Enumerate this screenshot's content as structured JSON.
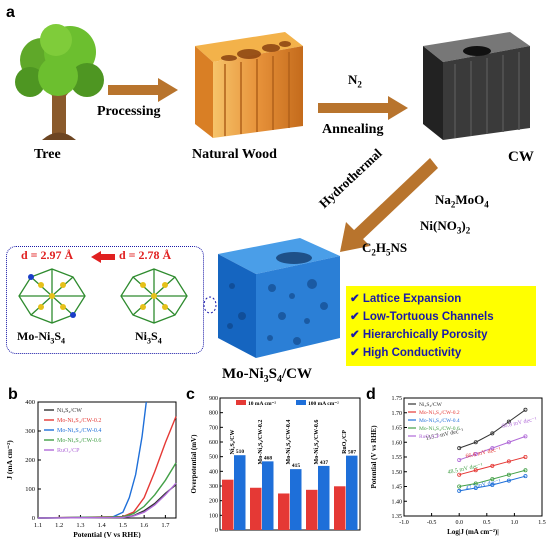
{
  "panel_labels": {
    "a": "a",
    "b": "b",
    "c": "c",
    "d": "d"
  },
  "scheme": {
    "tree": "Tree",
    "processing": "Processing",
    "natural_wood": "Natural Wood",
    "n2": "N2",
    "annealing": "Annealing",
    "cw": "CW",
    "hydrothermal": "Hydrothermal",
    "reagents": [
      "Na2MoO4",
      "Ni(NO3)2",
      "C2H5NS"
    ],
    "d1": "d = 2.97 Å",
    "d2": "d = 2.78 Å",
    "struct1": "Mo-Ni3S4",
    "struct2": "Ni3S4",
    "product": "Mo-Ni3S4/CW",
    "features": [
      "Lattice Expansion",
      "Low-Tortuous Channels",
      "Hierarchically Porosity",
      "High Conductivity"
    ]
  },
  "colors": {
    "ni3s4": "#333333",
    "mo02": "#e53935",
    "mo04": "#1e6fd9",
    "mo06": "#43a047",
    "ruo2": "#b06ad8",
    "yellow": "#ffff00",
    "navy": "#1a1aa8"
  },
  "chart_data": [
    {
      "type": "line",
      "panel": "b",
      "xlabel": "Potential (V vs RHE)",
      "ylabel": "J (mA cm⁻²)",
      "xlim": [
        1.1,
        1.75
      ],
      "ylim": [
        0,
        400
      ],
      "xticks": [
        "1.1",
        "1.2",
        "1.3",
        "1.4",
        "1.5",
        "1.6",
        "1.7"
      ],
      "yticks": [
        "0",
        "100",
        "200",
        "300",
        "400"
      ],
      "legend": [
        "Ni3S4/CW",
        "Mo-Ni3S4/CW-0.2",
        "Mo-Ni3S4/CW-0.4",
        "Mo-Ni3S4/CW-0.6",
        "RuO2/CP"
      ],
      "series": [
        {
          "name": "Ni3S4/CW",
          "x": [
            1.1,
            1.5,
            1.55,
            1.6,
            1.65,
            1.7,
            1.75
          ],
          "values": [
            0,
            2,
            8,
            25,
            50,
            85,
            115
          ]
        },
        {
          "name": "Mo-Ni3S4/CW-0.2",
          "x": [
            1.1,
            1.5,
            1.55,
            1.6,
            1.65,
            1.7,
            1.75
          ],
          "values": [
            0,
            5,
            20,
            70,
            160,
            260,
            350
          ]
        },
        {
          "name": "Mo-Ni3S4/CW-0.4",
          "x": [
            1.1,
            1.45,
            1.5,
            1.53,
            1.56,
            1.59,
            1.61
          ],
          "values": [
            0,
            3,
            20,
            70,
            150,
            280,
            400
          ]
        },
        {
          "name": "Mo-Ni3S4/CW-0.6",
          "x": [
            1.1,
            1.5,
            1.55,
            1.6,
            1.65,
            1.7,
            1.75
          ],
          "values": [
            0,
            4,
            15,
            40,
            80,
            130,
            190
          ]
        },
        {
          "name": "RuO2/CP",
          "x": [
            1.1,
            1.5,
            1.55,
            1.6,
            1.65,
            1.7,
            1.75
          ],
          "values": [
            0,
            2,
            7,
            20,
            45,
            80,
            120
          ]
        }
      ]
    },
    {
      "type": "bar",
      "panel": "c",
      "ylabel": "Overpotential (mV)",
      "ylim": [
        0,
        900
      ],
      "yticks": [
        "0",
        "100",
        "200",
        "300",
        "400",
        "500",
        "600",
        "700",
        "800",
        "900"
      ],
      "categories": [
        "Ni3S4/CW",
        "Mo-Ni3S4/CW-0.2",
        "Mo-Ni3S4/CW-0.4",
        "Mo-Ni3S4/CW-0.6",
        "RuO2/CP"
      ],
      "series": [
        {
          "name": "10 mA cm⁻²",
          "values": [
            343,
            288,
            249,
            274,
            298
          ]
        },
        {
          "name": "100 mA cm⁻²",
          "values": [
            510,
            468,
            415,
            437,
            507
          ]
        }
      ]
    },
    {
      "type": "line",
      "panel": "d",
      "xlabel": "Log|J (mA cm⁻²)|",
      "ylabel": "Potential (V vs RHE)",
      "xlim": [
        -1.0,
        1.5
      ],
      "ylim": [
        1.35,
        1.75
      ],
      "xticks": [
        "-1.0",
        "-0.5",
        "0.0",
        "0.5",
        "1.0",
        "1.5"
      ],
      "yticks": [
        "1.35",
        "1.40",
        "1.45",
        "1.50",
        "1.55",
        "1.60",
        "1.65",
        "1.70",
        "1.75"
      ],
      "legend": [
        "Ni3S4/CW",
        "Mo-Ni3S4/CW-0.2",
        "Mo-Ni3S4/CW-0.4",
        "Mo-Ni3S4/CW-0.6",
        "RuO2/CP"
      ],
      "annotations": [
        "115.7 mV dec⁻¹",
        "60.8 mV dec⁻¹",
        "66.6 mV dec⁻¹",
        "48.5 mV dec⁻¹",
        "47.7 mV dec⁻¹"
      ],
      "series": [
        {
          "name": "Ni3S4/CW",
          "x": [
            0.0,
            0.3,
            0.6,
            0.9,
            1.2
          ],
          "values": [
            1.58,
            1.6,
            1.63,
            1.67,
            1.71
          ]
        },
        {
          "name": "RuO2/CP",
          "x": [
            0.0,
            0.3,
            0.6,
            0.9,
            1.2
          ],
          "values": [
            1.54,
            1.56,
            1.58,
            1.6,
            1.62
          ]
        },
        {
          "name": "Mo-Ni3S4/CW-0.2",
          "x": [
            0.0,
            0.3,
            0.6,
            0.9,
            1.2
          ],
          "values": [
            1.49,
            1.505,
            1.52,
            1.535,
            1.55
          ]
        },
        {
          "name": "Mo-Ni3S4/CW-0.6",
          "x": [
            0.0,
            0.3,
            0.6,
            0.9,
            1.2
          ],
          "values": [
            1.45,
            1.46,
            1.475,
            1.49,
            1.505
          ]
        },
        {
          "name": "Mo-Ni3S4/CW-0.4",
          "x": [
            0.0,
            0.3,
            0.6,
            0.9,
            1.2
          ],
          "values": [
            1.435,
            1.445,
            1.455,
            1.47,
            1.485
          ]
        }
      ]
    }
  ]
}
